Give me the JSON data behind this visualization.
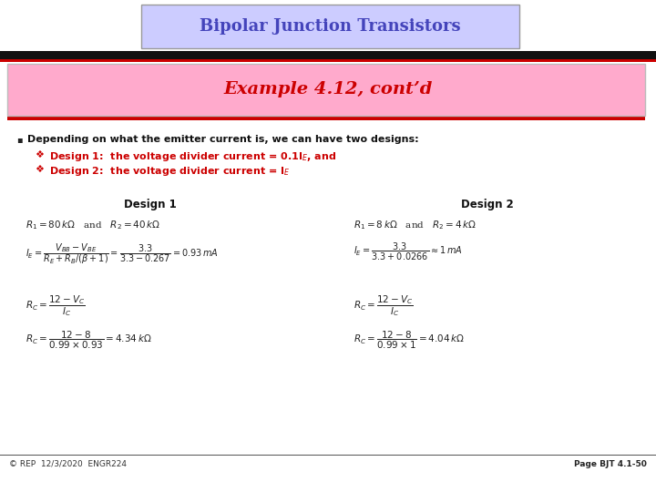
{
  "title": "Bipolar Junction Transistors",
  "subtitle": "Example 4.12, cont’d",
  "title_bg": "#ccccff",
  "subtitle_bg": "#ffaacc",
  "title_color": "#4444bb",
  "subtitle_color": "#cc0000",
  "bullet_text": "Depending on what the emitter current is, we can have two designs:",
  "design1_label": "Design 1",
  "design2_label": "Design 2",
  "footer_left": "© REP  12/3/2020  ENGR224",
  "footer_right": "Page BJT 4.1-50",
  "bg_color": "#ffffff",
  "sep_dark": "#111111",
  "sep_red": "#cc0000"
}
